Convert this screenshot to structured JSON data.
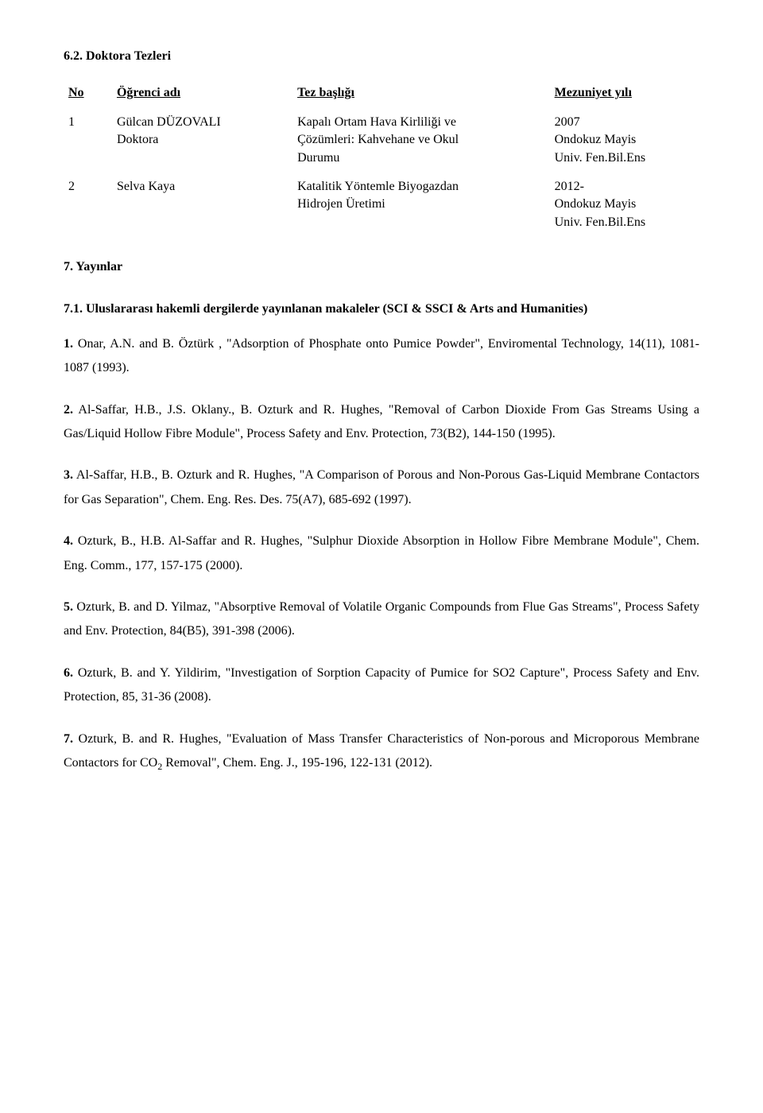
{
  "section": {
    "header": "6.2. Doktora Tezleri"
  },
  "table": {
    "headers": {
      "no": "No",
      "name": "Öğrenci adı",
      "title": "Tez başlığı",
      "year": "Mezuniyet yılı"
    },
    "rows": [
      {
        "no": "1",
        "name_line1": "Gülcan DÜZOVALI",
        "name_line2": "Doktora",
        "title_line1": "Kapalı Ortam Hava Kirliliği ve",
        "title_line2": "Çözümleri: Kahvehane ve Okul",
        "title_line3": "Durumu",
        "year_line1": "2007",
        "year_line2": "Ondokuz Mayis",
        "year_line3": "Univ. Fen.Bil.Ens"
      },
      {
        "no": "2",
        "name_line1": "Selva Kaya",
        "name_line2": "",
        "title_line1": "Katalitik Yöntemle Biyogazdan",
        "title_line2": "Hidrojen Üretimi",
        "title_line3": "",
        "year_line1": "2012-",
        "year_line2": "Ondokuz Mayis",
        "year_line3": "Univ. Fen.Bil.Ens"
      }
    ]
  },
  "pubs_section": {
    "header": "7. Yayınlar",
    "subheader": "7.1. Uluslararası hakemli dergilerde yayınlanan makaleler (SCI & SSCI & Arts and Humanities)"
  },
  "pubs": [
    {
      "lead": "1.",
      "text": " Onar, A.N. and B. Öztürk , \"Adsorption of Phosphate onto Pumice Powder\", Enviromental Technology, 14(11), 1081-1087 (1993)."
    },
    {
      "lead": "2.",
      "text": " Al-Saffar, H.B., J.S. Oklany., B. Ozturk and R. Hughes, \"Removal of Carbon Dioxide From Gas Streams Using a Gas/Liquid Hollow Fibre Module\", Process Safety and Env. Protection, 73(B2), 144-150 (1995)."
    },
    {
      "lead": "3.",
      "text": " Al-Saffar, H.B., B. Ozturk and R. Hughes, \"A Comparison of Porous and Non-Porous Gas-Liquid Membrane Contactors for Gas Separation\", Chem. Eng. Res. Des. 75(A7), 685-692 (1997)."
    },
    {
      "lead": "4.",
      "text": " Ozturk, B., H.B. Al-Saffar and R. Hughes, \"Sulphur Dioxide Absorption in Hollow Fibre Membrane Module\", Chem. Eng. Comm., 177, 157-175 (2000)."
    },
    {
      "lead": "5.",
      "text": " Ozturk, B. and D. Yilmaz, \"Absorptive Removal of Volatile Organic Compounds from Flue Gas Streams\", Process Safety and Env. Protection, 84(B5), 391-398 (2006)."
    },
    {
      "lead": "6.",
      "text": " Ozturk, B. and Y. Yildirim, \"Investigation of Sorption Capacity of Pumice for SO2 Capture\", Process Safety and Env. Protection, 85, 31-36 (2008)."
    },
    {
      "lead": "7.",
      "text_before": " Ozturk, B. and R. Hughes, \"Evaluation of Mass Transfer Characteristics of Non-porous and Microporous Membrane Contactors for CO",
      "sub": "2",
      "text_after": " Removal\", Chem. Eng. J., 195-196, 122-131 (2012)."
    }
  ]
}
